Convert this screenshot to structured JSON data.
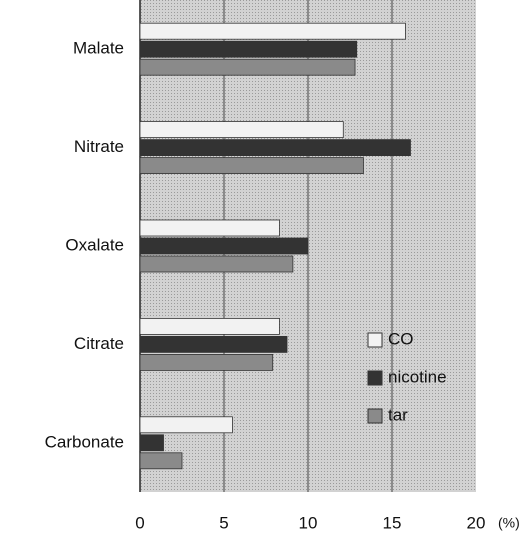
{
  "chart_data": {
    "type": "barh",
    "categories": [
      "Malate",
      "Nitrate",
      "Oxalate",
      "Citrate",
      "Carbonate"
    ],
    "series": [
      {
        "name": "CO",
        "color": "#f2f2f2",
        "values": [
          15.8,
          12.1,
          8.3,
          8.3,
          5.5
        ]
      },
      {
        "name": "nicotine",
        "color": "#333333",
        "values": [
          12.9,
          16.1,
          10.0,
          8.75,
          1.4
        ]
      },
      {
        "name": "tar",
        "color": "#8a8a8a",
        "values": [
          12.8,
          13.3,
          9.1,
          7.9,
          2.5
        ]
      }
    ],
    "xlabel": "(%)",
    "xlim": [
      0,
      20
    ],
    "xticks": [
      0,
      5,
      10,
      15,
      20
    ],
    "grid": true,
    "legend": "lower right"
  }
}
